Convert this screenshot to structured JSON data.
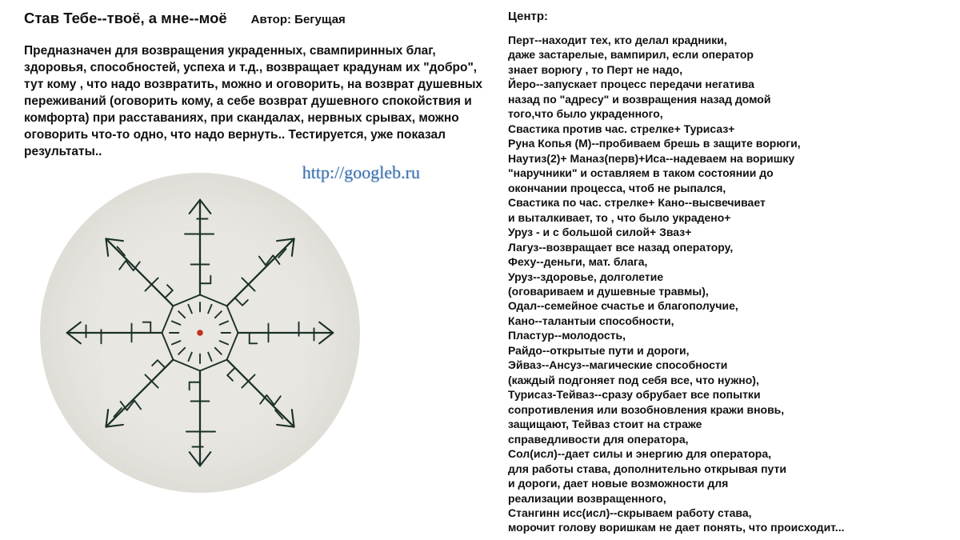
{
  "title": "Став Тебе--твоё, а мне--моё",
  "author": "Автор: Бегущая",
  "intro": "Предназначен для возвращения украденных,\nсвампиринных благ, здоровья, способностей, успеха и т.д.,\n возвращает крадунам их \"добро\", тут кому ,\nчто надо возвратить, можно и оговорить, на возврат\nдушевных переживаний (оговорить кому,\nа себе возврат душевного спокойствия и комфорта)\nпри расставаниях, при скандалах, нервных срывах,\nможно оговорить что-то одно, что надо вернуть..\nТестируется, уже показал результаты..",
  "watermark": "http://googleb.ru",
  "center_heading": "Центр:",
  "runes_text": "Перт--находит тех, кто делал крадники,\n даже застарелые, вампирил, если оператор\n знает ворюгу , то Перт не надо,\nЙеро--запускает процесс передачи негатива\nназад по \"адресу\" и возвращения назад домой\nтого,что было украденного,\nСвастика против час. стрелке+ Турисаз+\nРуна Копья (М)--пробиваем брешь в защите ворюги,\nНаутиз(2)+ Маназ(перв)+Иса--надеваем на воришку\n \"наручники\" и оставляем в таком состоянии до\nокончании процесса, чтоб не рыпался,\nСвастика по час. стрелке+ Кано--высвечивает\nи выталкивает, то , что было украдено+\nУруз - и с большой силой+ Зваз+\nЛагуз--возвращает все назад оператору,\nФеху--деньги, мат. блага,\nУруз--здоровье, долголетие\n(оговариваем и душевные травмы),\nОдал--семейное счастье и благополучие,\nКано--талантыи способности,\nПластур--молодость,\nРайдо--открытые пути и дороги,\nЭйваз--Ансуз--магические способности\n(каждый подгоняет под себя все, что нужно),\nТурисаз-Тейваз--сразу обрубает все попытки\n сопротивления или возобновления кражи вновь,\nзащищают, Тейваз стоит на страже\nсправедливости для оператора,\nСол(исл)--дает силы и энергию для оператора,\nдля работы става, дополнительно открывая пути\n и дороги, дает новые возможности для\n реализации возвращенного,\nСтангинн исс(исл)--скрываем работу става,\nморочит голову воришкам не дает понять, что происходит...",
  "sigil": {
    "stroke": "#1a3028",
    "center_dot": "#c03020",
    "bg": "#e9e7e2",
    "spokes": 8
  }
}
